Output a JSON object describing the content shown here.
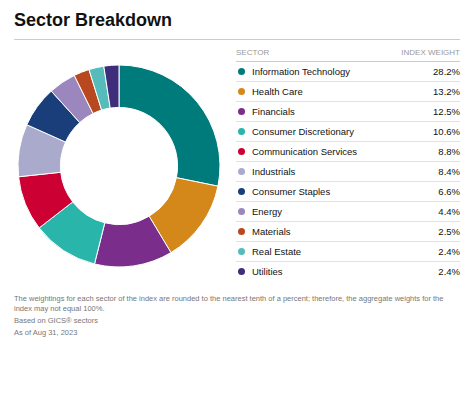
{
  "chart_data": {
    "type": "pie",
    "title": "Sector Breakdown",
    "categories": [
      "Information Technology",
      "Health Care",
      "Financials",
      "Consumer Discretionary",
      "Communication Services",
      "Industrials",
      "Consumer Staples",
      "Energy",
      "Materials",
      "Real Estate",
      "Utilities"
    ],
    "values": [
      28.2,
      13.2,
      12.5,
      10.6,
      8.8,
      8.4,
      6.6,
      4.4,
      2.5,
      2.4,
      2.4
    ],
    "value_labels": [
      "28.2%",
      "13.2%",
      "12.5%",
      "10.6%",
      "8.8%",
      "8.4%",
      "6.6%",
      "4.4%",
      "2.5%",
      "2.4%",
      "2.4%"
    ],
    "colors": [
      "#007B7B",
      "#D4881A",
      "#7B2D8B",
      "#2AB5AA",
      "#CC0033",
      "#AAAACC",
      "#1A3E7A",
      "#9B86BD",
      "#B84820",
      "#55BBBB",
      "#3D2D7A"
    ],
    "legend": "right",
    "column_headers": [
      "SECTOR",
      "INDEX WEIGHT"
    ],
    "annotations": [
      "The weightings for each sector of the index are rounded to the nearest tenth of a percent; therefore, the aggregate weights for the index may not equal 100%.",
      "Based on GICS® sectors",
      "As of Aug 31, 2023"
    ]
  }
}
